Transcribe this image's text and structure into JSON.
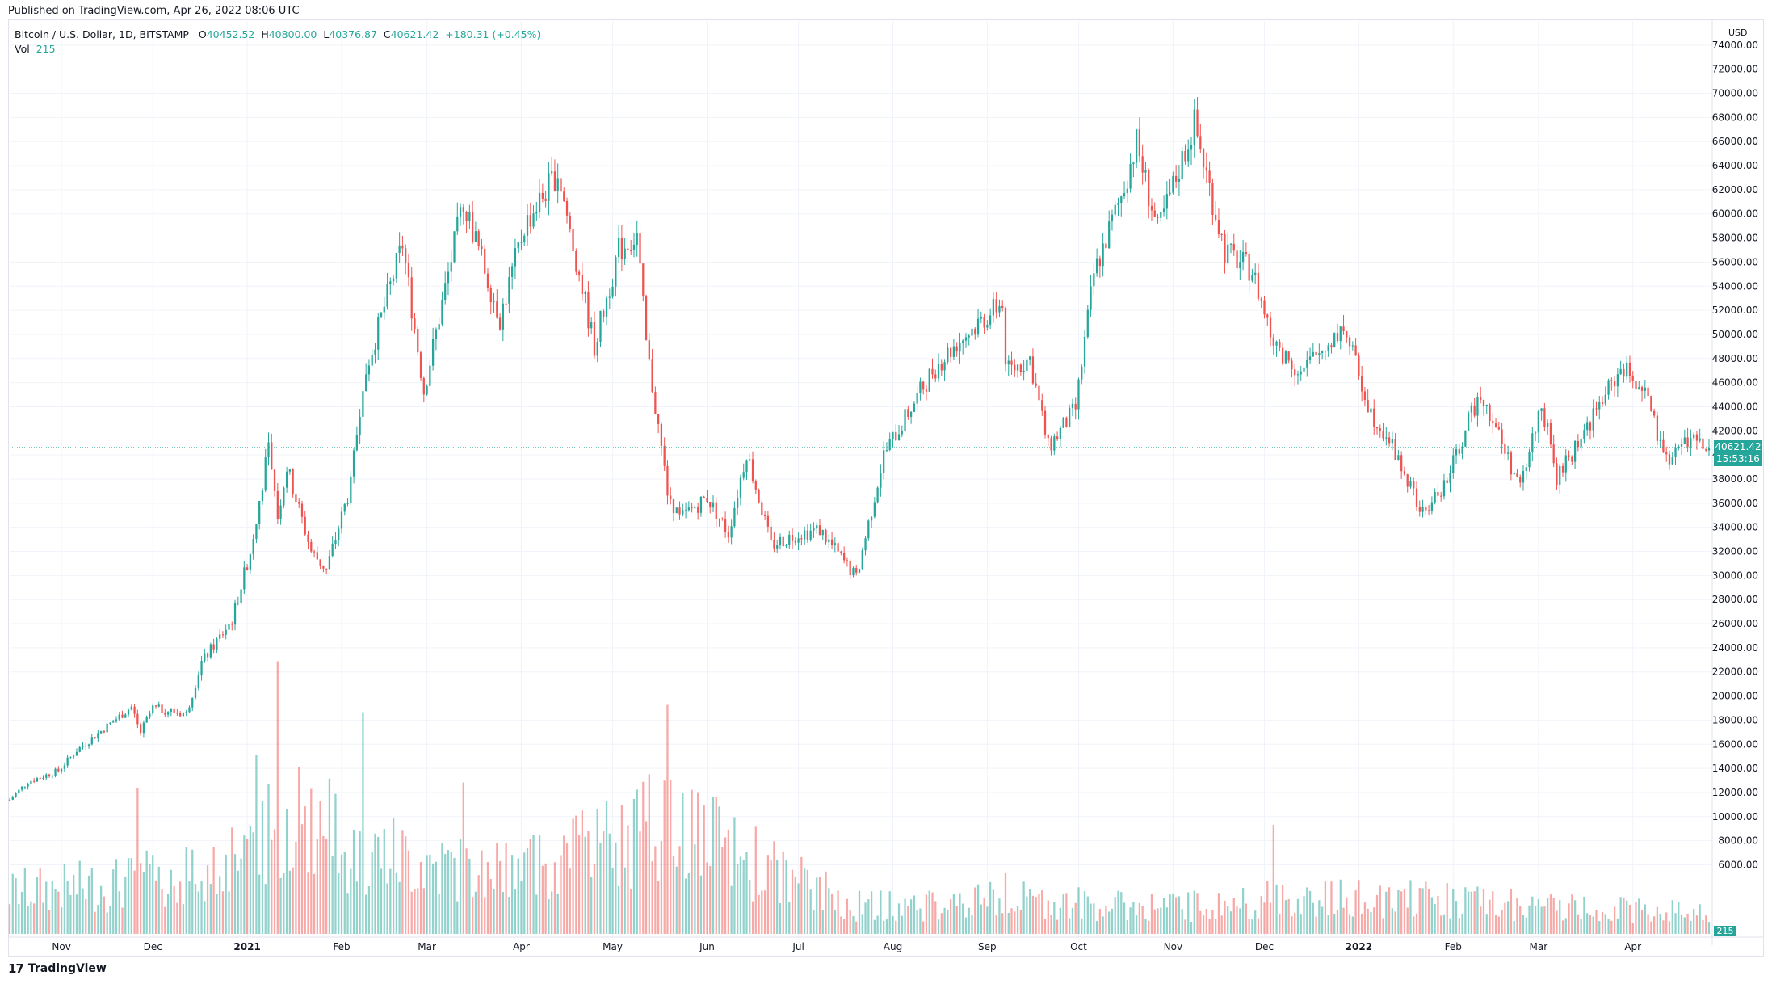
{
  "header": {
    "published": "Published on TradingView.com, Apr 26, 2022 08:06 UTC",
    "symbol": "Bitcoin / U.S. Dollar, 1D, BITSTAMP",
    "o_label": "O",
    "o_value": "40452.52",
    "h_label": "H",
    "h_value": "40800.00",
    "l_label": "L",
    "l_value": "40376.87",
    "c_label": "C",
    "c_value": "40621.42",
    "change": "+180.31 (+0.45%)",
    "vol_label": "Vol",
    "vol_value": "215"
  },
  "footer": {
    "brand": "TradingView",
    "logo": "17"
  },
  "price_axis": {
    "unit": "USD"
  },
  "last_price": {
    "price": "40621.42",
    "countdown": "15:53:16",
    "volume": "215"
  },
  "colors": {
    "up": "#26a69a",
    "down": "#ef5350",
    "grid": "#f0f3fa"
  },
  "chart_data": {
    "type": "candlestick",
    "title": "Bitcoin / U.S. Dollar, 1D, BITSTAMP",
    "x_range": [
      "2020-10-15",
      "2022-04-26"
    ],
    "ylim": [
      0,
      76000
    ],
    "y_ticks": [
      6000,
      8000,
      10000,
      12000,
      14000,
      16000,
      18000,
      20000,
      22000,
      24000,
      26000,
      28000,
      30000,
      32000,
      34000,
      36000,
      38000,
      40000,
      42000,
      44000,
      46000,
      48000,
      50000,
      52000,
      54000,
      56000,
      58000,
      60000,
      62000,
      64000,
      66000,
      68000,
      70000,
      72000,
      74000
    ],
    "x_ticks": [
      {
        "label": "Nov",
        "date": "2020-11-01"
      },
      {
        "label": "Dec",
        "date": "2020-12-01"
      },
      {
        "label": "2021",
        "date": "2021-01-01"
      },
      {
        "label": "Feb",
        "date": "2021-02-01"
      },
      {
        "label": "Mar",
        "date": "2021-03-01"
      },
      {
        "label": "Apr",
        "date": "2021-04-01"
      },
      {
        "label": "May",
        "date": "2021-05-01"
      },
      {
        "label": "Jun",
        "date": "2021-06-01"
      },
      {
        "label": "Jul",
        "date": "2021-07-01"
      },
      {
        "label": "Aug",
        "date": "2021-08-01"
      },
      {
        "label": "Sep",
        "date": "2021-09-01"
      },
      {
        "label": "Oct",
        "date": "2021-10-01"
      },
      {
        "label": "Nov",
        "date": "2021-11-01"
      },
      {
        "label": "Dec",
        "date": "2021-12-01"
      },
      {
        "label": "2022",
        "date": "2022-01-01"
      },
      {
        "label": "Feb",
        "date": "2022-02-01"
      },
      {
        "label": "Mar",
        "date": "2022-03-01"
      },
      {
        "label": "Apr",
        "date": "2022-04-01"
      }
    ],
    "close_path": [
      [
        "2020-10-15",
        11400
      ],
      [
        "2020-10-21",
        12900
      ],
      [
        "2020-10-31",
        13800
      ],
      [
        "2020-11-06",
        15500
      ],
      [
        "2020-11-24",
        19100
      ],
      [
        "2020-11-27",
        17000
      ],
      [
        "2020-12-01",
        19000
      ],
      [
        "2020-12-12",
        18500
      ],
      [
        "2020-12-17",
        22800
      ],
      [
        "2020-12-27",
        26300
      ],
      [
        "2021-01-02",
        32000
      ],
      [
        "2021-01-08",
        40500
      ],
      [
        "2021-01-11",
        35000
      ],
      [
        "2021-01-14",
        39000
      ],
      [
        "2021-01-22",
        32000
      ],
      [
        "2021-01-27",
        30500
      ],
      [
        "2021-02-04",
        37500
      ],
      [
        "2021-02-08",
        46200
      ],
      [
        "2021-02-21",
        57500
      ],
      [
        "2021-02-28",
        45300
      ],
      [
        "2021-03-13",
        61100
      ],
      [
        "2021-03-25",
        51300
      ],
      [
        "2021-04-02",
        59000
      ],
      [
        "2021-04-13",
        63500
      ],
      [
        "2021-04-25",
        49000
      ],
      [
        "2021-05-03",
        57000
      ],
      [
        "2021-05-09",
        58200
      ],
      [
        "2021-05-12",
        49200
      ],
      [
        "2021-05-19",
        37000
      ],
      [
        "2021-05-23",
        34700
      ],
      [
        "2021-06-01",
        36500
      ],
      [
        "2021-06-08",
        33500
      ],
      [
        "2021-06-14",
        40300
      ],
      [
        "2021-06-22",
        32500
      ],
      [
        "2021-07-01",
        33500
      ],
      [
        "2021-07-08",
        33800
      ],
      [
        "2021-07-20",
        29800
      ],
      [
        "2021-07-29",
        40000
      ],
      [
        "2021-08-14",
        47000
      ],
      [
        "2021-08-22",
        49300
      ],
      [
        "2021-09-06",
        52700
      ],
      [
        "2021-09-07",
        46800
      ],
      [
        "2021-09-15",
        48000
      ],
      [
        "2021-09-21",
        40600
      ],
      [
        "2021-09-30",
        43800
      ],
      [
        "2021-10-06",
        55000
      ],
      [
        "2021-10-15",
        61500
      ],
      [
        "2021-10-20",
        65900
      ],
      [
        "2021-10-27",
        58500
      ],
      [
        "2021-11-08",
        67500
      ],
      [
        "2021-11-18",
        56900
      ],
      [
        "2021-11-27",
        55300
      ],
      [
        "2021-12-04",
        49300
      ],
      [
        "2021-12-13",
        46800
      ],
      [
        "2021-12-27",
        50700
      ],
      [
        "2022-01-05",
        43500
      ],
      [
        "2022-01-10",
        41800
      ],
      [
        "2022-01-22",
        35000
      ],
      [
        "2022-01-30",
        37900
      ],
      [
        "2022-02-10",
        45400
      ],
      [
        "2022-02-23",
        37200
      ],
      [
        "2022-03-02",
        44400
      ],
      [
        "2022-03-07",
        38000
      ],
      [
        "2022-03-28",
        47200
      ],
      [
        "2022-04-05",
        45500
      ],
      [
        "2022-04-11",
        39500
      ],
      [
        "2022-04-20",
        41400
      ],
      [
        "2022-04-26",
        40621
      ]
    ],
    "volume_path": [
      [
        "2020-10-15",
        3000
      ],
      [
        "2020-11-15",
        3500
      ],
      [
        "2020-12-20",
        4500
      ],
      [
        "2021-01-11",
        9000
      ],
      [
        "2021-02-10",
        6000
      ],
      [
        "2021-03-15",
        4500
      ],
      [
        "2021-04-18",
        5500
      ],
      [
        "2021-05-19",
        8000
      ],
      [
        "2021-06-22",
        4500
      ],
      [
        "2021-07-20",
        2000
      ],
      [
        "2021-08-15",
        2000
      ],
      [
        "2021-09-07",
        2500
      ],
      [
        "2021-10-15",
        2000
      ],
      [
        "2021-11-15",
        2000
      ],
      [
        "2021-12-04",
        2500
      ],
      [
        "2022-01-22",
        2500
      ],
      [
        "2022-02-24",
        2000
      ],
      [
        "2022-04-26",
        1500
      ]
    ],
    "volume_spikes": [
      [
        "2021-01-11",
        22500
      ],
      [
        "2021-02-08",
        18300
      ],
      [
        "2021-05-19",
        18900
      ],
      [
        "2021-01-04",
        14800
      ],
      [
        "2021-12-04",
        9000
      ],
      [
        "2020-11-26",
        12000
      ],
      [
        "2021-03-13",
        12500
      ],
      [
        "2021-04-18",
        9500
      ],
      [
        "2021-09-07",
        5000
      ]
    ],
    "last_price": 40621.42
  }
}
